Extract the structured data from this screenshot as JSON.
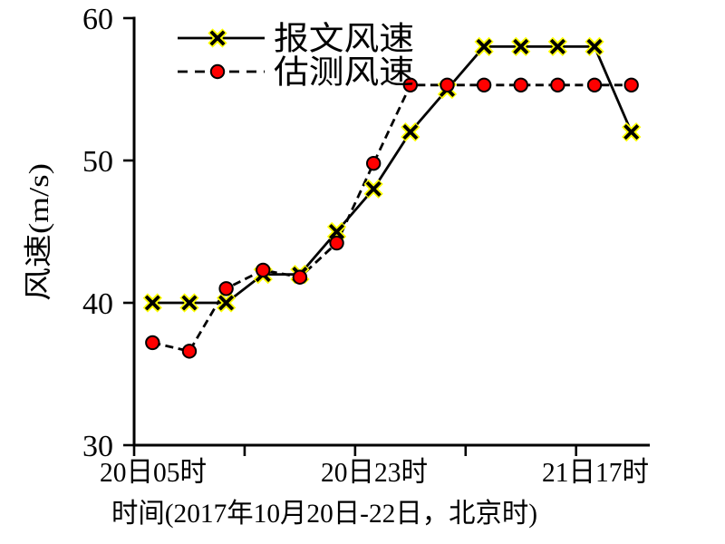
{
  "chart_data": {
    "type": "line",
    "title": "",
    "ylabel": "风速(m/s)",
    "xlabel": "时间(2017年10月20日-22日，北京时)",
    "ylim": [
      30,
      60
    ],
    "yticks": [
      60,
      50,
      40,
      30
    ],
    "x_count": 14,
    "x_tick_interval_hours": 3,
    "x_tick_labels": [
      {
        "index": 1,
        "label": "20日05时"
      },
      {
        "index": 7,
        "label": "20日23时"
      },
      {
        "index": 13,
        "label": "21日17时"
      }
    ],
    "grid": false,
    "legend_position": "top-left-inside",
    "series": [
      {
        "name": "报文风速",
        "line": "solid",
        "marker": "x",
        "marker_fill": "#ffff00",
        "color": "#000000",
        "values": [
          40,
          40,
          40,
          42,
          42,
          45,
          48,
          52,
          55,
          58,
          58,
          58,
          58,
          52
        ]
      },
      {
        "name": "估测风速",
        "line": "dashed",
        "marker": "circle",
        "marker_fill": "#ff0000",
        "color": "#000000",
        "values": [
          37.2,
          36.6,
          41,
          42.3,
          41.8,
          44.2,
          49.8,
          55.3,
          55.3,
          55.3,
          55.3,
          55.3,
          55.3,
          55.3
        ]
      }
    ]
  }
}
